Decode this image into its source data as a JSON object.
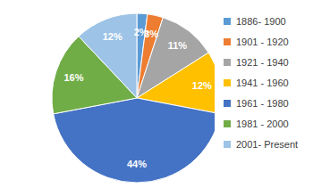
{
  "chart_data": {
    "type": "pie",
    "categories": [
      "1886- 1900",
      "1901 - 1920",
      "1921 - 1940",
      "1941 - 1960",
      "1961 - 1980",
      "1981 - 2000",
      "2001- Present"
    ],
    "values": [
      2,
      3,
      11,
      12,
      44,
      16,
      12
    ],
    "value_labels": [
      "2%",
      "3%",
      "11%",
      "12%",
      "44%",
      "16%",
      "12%"
    ],
    "colors": [
      "#5b9bd5",
      "#ed7d31",
      "#a5a5a5",
      "#ffc000",
      "#4472c4",
      "#70ad47",
      "#9dc3e6"
    ],
    "data_labels": true,
    "legend": "right"
  }
}
